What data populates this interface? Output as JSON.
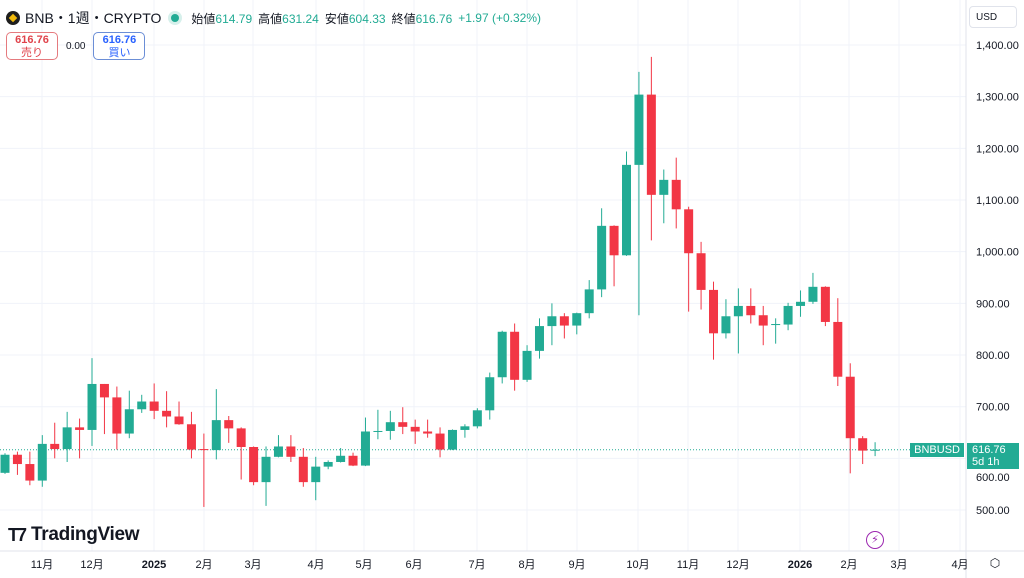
{
  "header": {
    "symbol_icon": "bnb-coin-icon",
    "title": "BNB・1週・CRYPTO",
    "status_color": "#22ab94",
    "open_label": "始値",
    "open": "614.79",
    "high_label": "高値",
    "high": "631.24",
    "low_label": "安値",
    "low": "604.33",
    "close_label": "終値",
    "close": "616.76",
    "change": "+1.97 (+0.32%)"
  },
  "trade": {
    "sell_price": "616.76",
    "sell_label": "売り",
    "spread": "0.00",
    "buy_price": "616.76",
    "buy_label": "買い"
  },
  "currency_button": "USD",
  "logo_text": "TradingView",
  "price_tag": {
    "symbol": "BNBUSD",
    "price": "616.76",
    "countdown": "5d 1h"
  },
  "colors": {
    "up": "#22ab94",
    "down": "#f23645",
    "grid": "#f0f3fa"
  },
  "chart_data": {
    "type": "candlestick",
    "interval": "1W",
    "ylim": [
      500,
      1400
    ],
    "y_ticks": [
      "1,400.00",
      "1,300.00",
      "1,200.00",
      "1,100.00",
      "1,000.00",
      "900.00",
      "800.00",
      "700.00",
      "600.00",
      "500.00"
    ],
    "y_tick_values": [
      1400,
      1300,
      1200,
      1100,
      1000,
      900,
      800,
      700,
      600,
      500
    ],
    "x_ticks": [
      "11月",
      "12月",
      "2025",
      "2月",
      "3月",
      "4月",
      "5月",
      "6月",
      "7月",
      "8月",
      "9月",
      "10月",
      "11月",
      "12月",
      "2026",
      "2月",
      "3月",
      "4月"
    ],
    "grid": true,
    "last_price": 616.76,
    "ohlc": [
      [
        572,
        610,
        570,
        607
      ],
      [
        607,
        613,
        568,
        589
      ],
      [
        589,
        613,
        548,
        557
      ],
      [
        557,
        645,
        545,
        628
      ],
      [
        628,
        669,
        600,
        618
      ],
      [
        618,
        690,
        593,
        660
      ],
      [
        660,
        677,
        600,
        655
      ],
      [
        655,
        794,
        624,
        744
      ],
      [
        744,
        744,
        647,
        718
      ],
      [
        718,
        739,
        617,
        648
      ],
      [
        648,
        731,
        639,
        695
      ],
      [
        695,
        723,
        688,
        710
      ],
      [
        710,
        745,
        676,
        692
      ],
      [
        692,
        730,
        660,
        681
      ],
      [
        681,
        710,
        665,
        666
      ],
      [
        666,
        690,
        600,
        617
      ],
      [
        618,
        648,
        506,
        616
      ],
      [
        616,
        734,
        598,
        674
      ],
      [
        674,
        682,
        630,
        658
      ],
      [
        658,
        660,
        559,
        622
      ],
      [
        622,
        623,
        548,
        554
      ],
      [
        554,
        623,
        508,
        603
      ],
      [
        603,
        645,
        602,
        623
      ],
      [
        623,
        645,
        593,
        603
      ],
      [
        603,
        620,
        545,
        554
      ],
      [
        554,
        603,
        519,
        584
      ],
      [
        584,
        596,
        579,
        593
      ],
      [
        593,
        620,
        592,
        605
      ],
      [
        605,
        611,
        585,
        586
      ],
      [
        586,
        679,
        585,
        652
      ],
      [
        652,
        694,
        637,
        653
      ],
      [
        653,
        692,
        636,
        670
      ],
      [
        670,
        699,
        647,
        661
      ],
      [
        661,
        675,
        628,
        652
      ],
      [
        652,
        675,
        640,
        648
      ],
      [
        648,
        660,
        602,
        617
      ],
      [
        617,
        656,
        616,
        655
      ],
      [
        655,
        666,
        640,
        662
      ],
      [
        662,
        697,
        658,
        693
      ],
      [
        693,
        766,
        675,
        757
      ],
      [
        757,
        847,
        745,
        845
      ],
      [
        845,
        861,
        731,
        752
      ],
      [
        752,
        819,
        748,
        808
      ],
      [
        808,
        871,
        793,
        856
      ],
      [
        856,
        900,
        819,
        875
      ],
      [
        875,
        881,
        832,
        857
      ],
      [
        857,
        882,
        840,
        881
      ],
      [
        881,
        945,
        871,
        927
      ],
      [
        927,
        1084,
        912,
        1050
      ],
      [
        1050,
        1051,
        933,
        993
      ],
      [
        993,
        1194,
        992,
        1168
      ],
      [
        1168,
        1348,
        877,
        1304
      ],
      [
        1304,
        1377,
        1022,
        1110
      ],
      [
        1110,
        1159,
        1055,
        1139
      ],
      [
        1139,
        1182,
        1045,
        1082
      ],
      [
        1082,
        1087,
        884,
        997
      ],
      [
        997,
        1019,
        888,
        926
      ],
      [
        926,
        942,
        791,
        842
      ],
      [
        842,
        908,
        832,
        875
      ],
      [
        875,
        929,
        803,
        895
      ],
      [
        895,
        929,
        861,
        877
      ],
      [
        877,
        895,
        819,
        857
      ],
      [
        858,
        871,
        822,
        860
      ],
      [
        859,
        901,
        848,
        895
      ],
      [
        895,
        925,
        874,
        903
      ],
      [
        903,
        959,
        899,
        932
      ],
      [
        932,
        933,
        856,
        864
      ],
      [
        864,
        910,
        740,
        758
      ],
      [
        758,
        784,
        571,
        639
      ],
      [
        639,
        643,
        589,
        615
      ],
      [
        614.79,
        631.24,
        604.33,
        616.76
      ]
    ]
  }
}
